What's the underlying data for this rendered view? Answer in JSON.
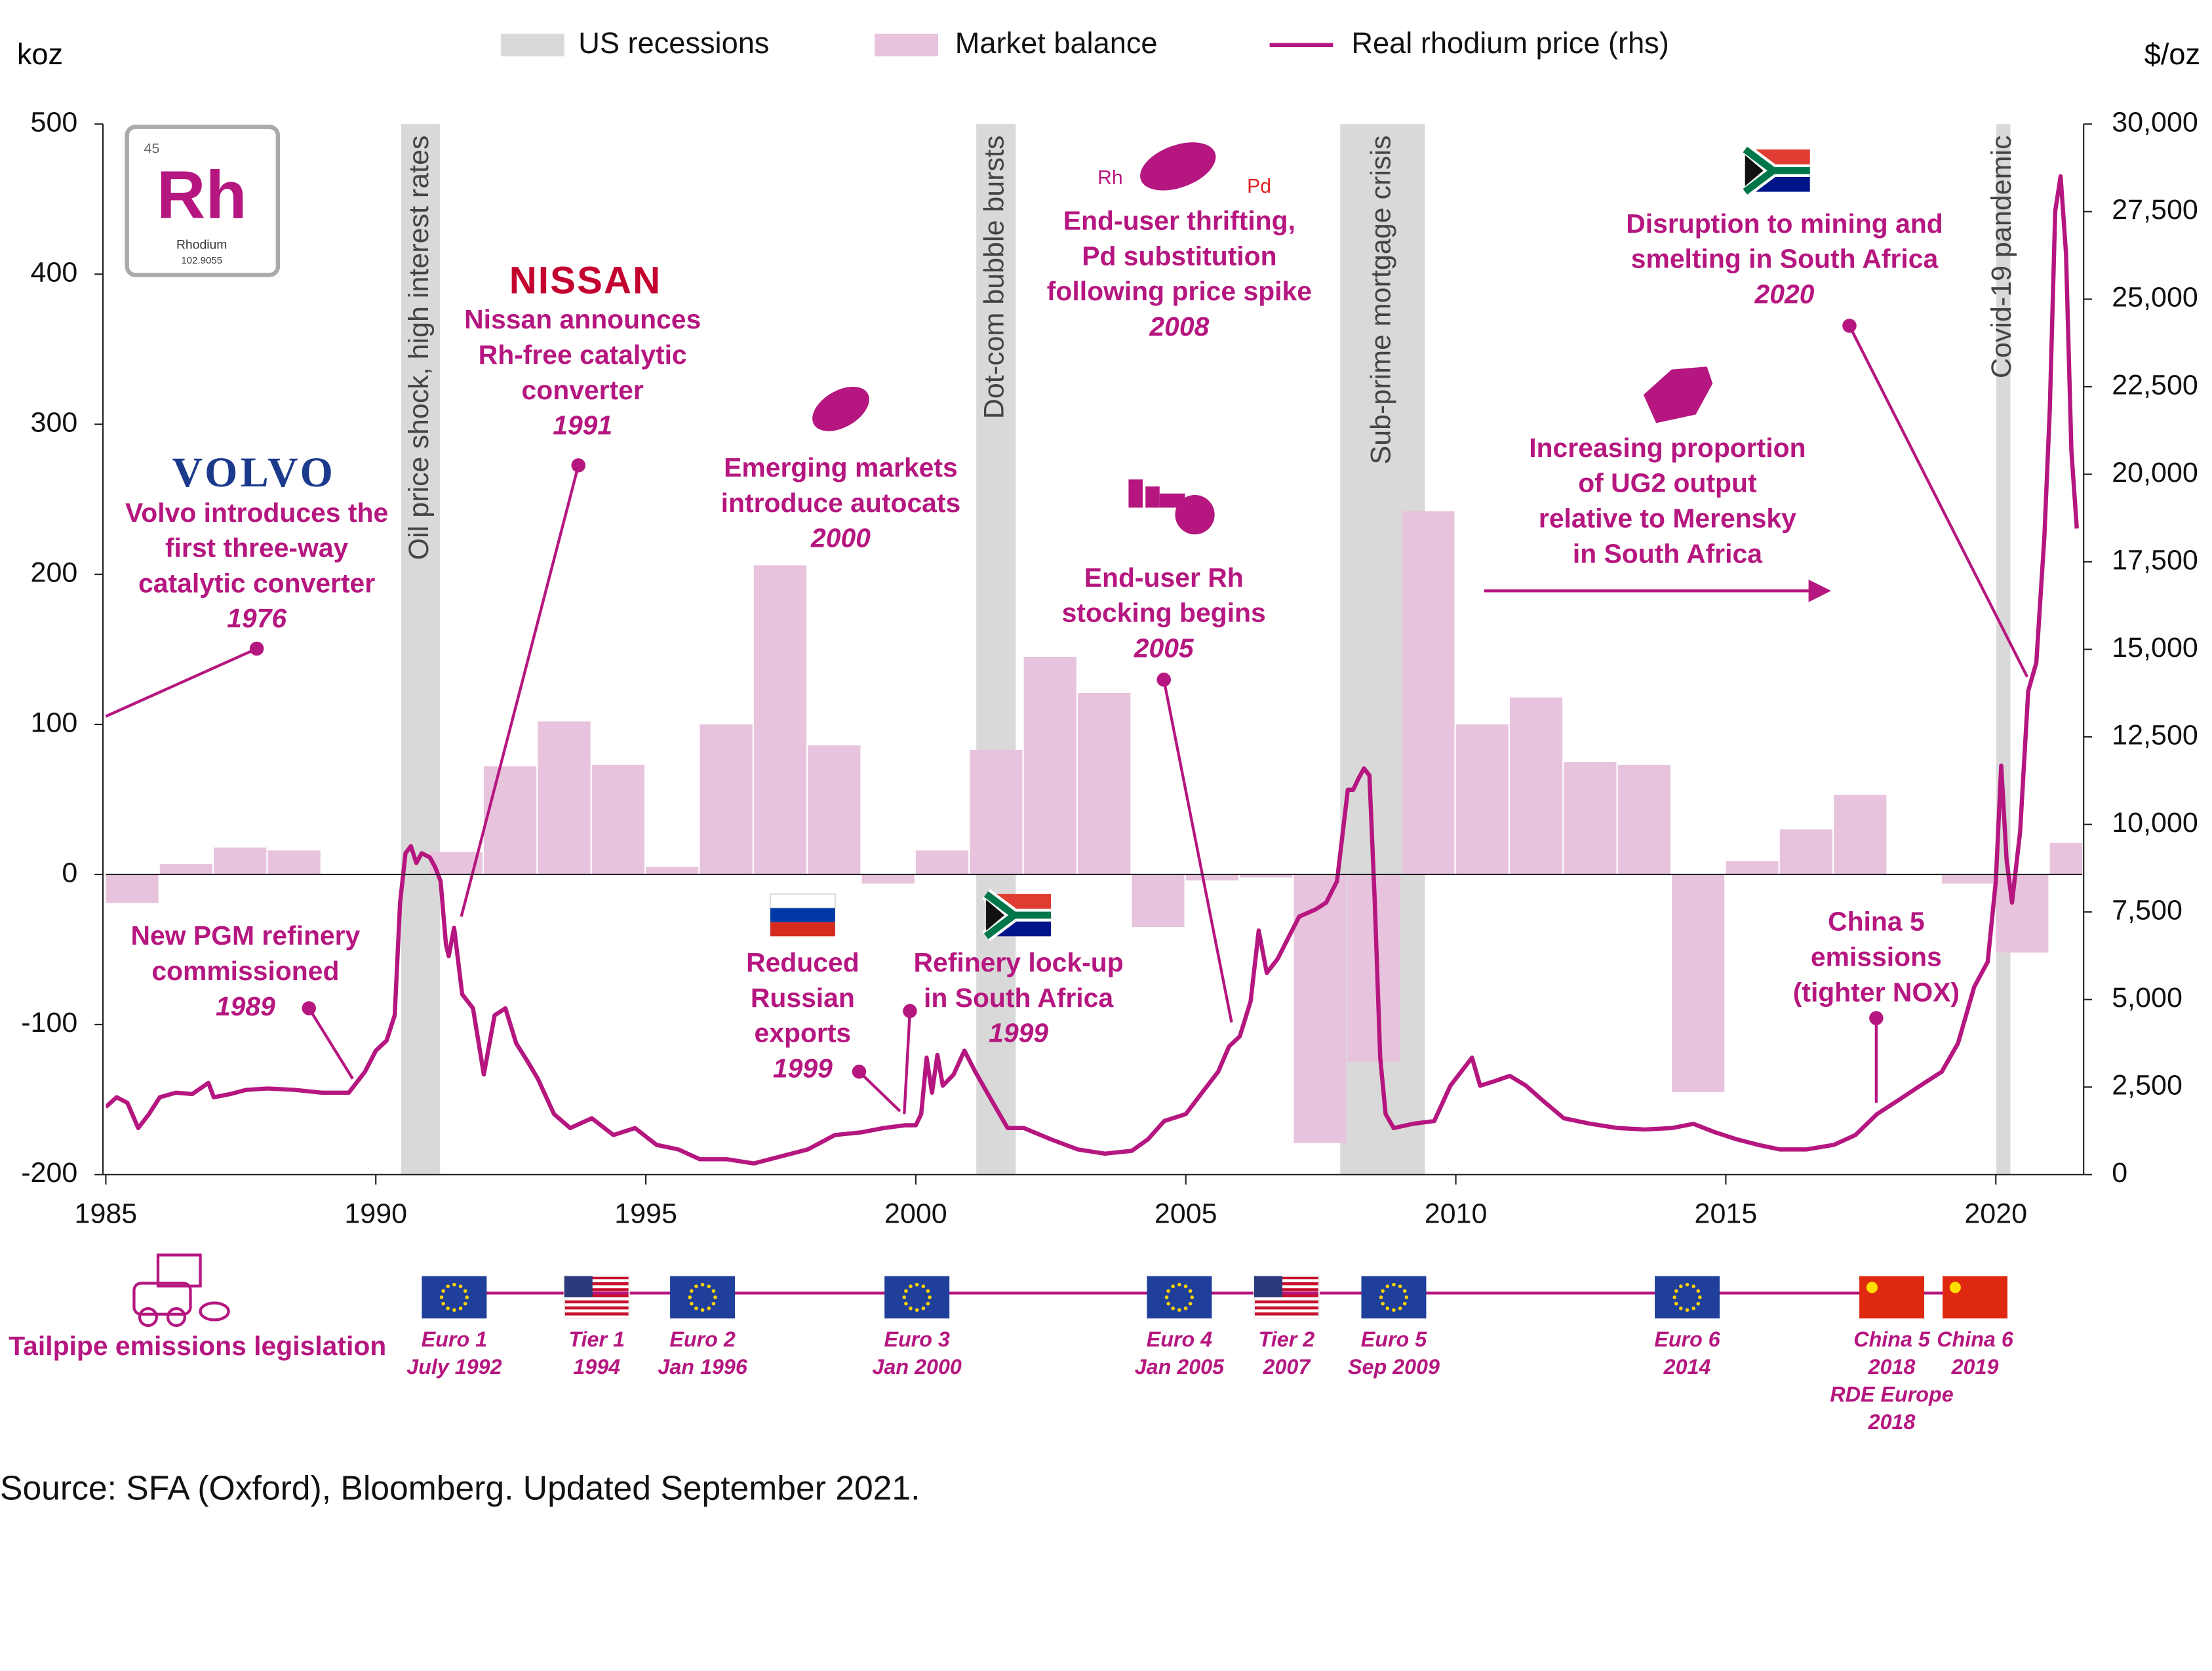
{
  "chart_data": {
    "type": "combo",
    "y_label": "koz",
    "y2_label": "$/oz",
    "xlim": [
      1985,
      2021.6
    ],
    "xticks": [
      1985,
      1990,
      1995,
      2000,
      2005,
      2010,
      2015,
      2020
    ],
    "ylim": [
      -200,
      500
    ],
    "yticks": [
      500,
      400,
      300,
      200,
      100,
      0,
      -100,
      -200
    ],
    "y2lim": [
      0,
      30000
    ],
    "y2ticks": [
      {
        "value": 30000,
        "label": "30,000"
      },
      {
        "value": 27500,
        "label": "27,500"
      },
      {
        "value": 25000,
        "label": "25,000"
      },
      {
        "value": 22500,
        "label": "22,500"
      },
      {
        "value": 20000,
        "label": "20,000"
      },
      {
        "value": 17500,
        "label": "17,500"
      },
      {
        "value": 15000,
        "label": "15,000"
      },
      {
        "value": 12500,
        "label": "12,500"
      },
      {
        "value": 10000,
        "label": "10,000"
      },
      {
        "value": 7500,
        "label": "7,500"
      },
      {
        "value": 5000,
        "label": "5,000"
      },
      {
        "value": 2500,
        "label": "2,500"
      },
      0
    ],
    "recessions": {
      "name": "US recessions",
      "color": "#d9d9d9",
      "periods": [
        {
          "start": 1990.47,
          "end": 1991.19,
          "label": "Oil price shock, high interest rates"
        },
        {
          "start": 2001.12,
          "end": 2001.85,
          "label": "Dot-com bubble bursts"
        },
        {
          "start": 2007.86,
          "end": 2009.43,
          "label": "Sub-prime mortgage crisis"
        },
        {
          "start": 2020.01,
          "end": 2020.27,
          "label": "Covid-19 pandemic"
        }
      ]
    },
    "series": [
      {
        "name": "Market balance",
        "type": "bar",
        "color": "#e8c3dd",
        "x": [
          1985,
          1986,
          1987,
          1988,
          1989,
          1990,
          1991,
          1992,
          1993,
          1994,
          1995,
          1996,
          1997,
          1998,
          1999,
          2000,
          2001,
          2002,
          2003,
          2004,
          2005,
          2006,
          2007,
          2008,
          2009,
          2010,
          2011,
          2012,
          2013,
          2014,
          2015,
          2016,
          2017,
          2018,
          2019,
          2020,
          2021
        ],
        "values": [
          -19,
          7,
          18,
          16,
          0,
          0,
          15,
          72,
          102,
          73,
          5,
          100,
          206,
          86,
          -6,
          16,
          83,
          145,
          121,
          -35,
          -4,
          -2,
          -179,
          -125,
          242,
          100,
          118,
          75,
          73,
          -145,
          9,
          30,
          53,
          0,
          -6,
          -52,
          21
        ]
      },
      {
        "name": "Real rhodium price (rhs)",
        "type": "line",
        "axis": "y2",
        "color": "#b5167f",
        "x": [
          1985,
          1985.2,
          1985.4,
          1985.6,
          1985.8,
          1986,
          1986.3,
          1986.6,
          1986.9,
          1987,
          1987.3,
          1987.6,
          1988,
          1988.5,
          1989,
          1989.5,
          1989.8,
          1990,
          1990.2,
          1990.35,
          1990.45,
          1990.55,
          1990.65,
          1990.75,
          1990.85,
          1991,
          1991.1,
          1991.2,
          1991.3,
          1991.35,
          1991.45,
          1991.6,
          1991.8,
          1992,
          1992.2,
          1992.4,
          1992.6,
          1992.8,
          1993,
          1993.3,
          1993.6,
          1994,
          1994.4,
          1994.8,
          1995.2,
          1995.6,
          1996,
          1996.5,
          1997,
          1997.5,
          1998,
          1998.5,
          1999,
          1999.4,
          1999.8,
          2000,
          2000.1,
          2000.2,
          2000.3,
          2000.4,
          2000.5,
          2000.7,
          2000.9,
          2001.1,
          2001.4,
          2001.7,
          2002,
          2002.5,
          2003,
          2003.5,
          2004,
          2004.3,
          2004.6,
          2005,
          2005.3,
          2005.6,
          2005.8,
          2006,
          2006.2,
          2006.35,
          2006.5,
          2006.7,
          2006.9,
          2007.1,
          2007.4,
          2007.6,
          2007.8,
          2008,
          2008.1,
          2008.2,
          2008.3,
          2008.4,
          2008.5,
          2008.6,
          2008.7,
          2008.85,
          2009.2,
          2009.6,
          2009.9,
          2010.1,
          2010.3,
          2010.45,
          2010.7,
          2011,
          2011.3,
          2011.6,
          2012,
          2012.5,
          2013,
          2013.5,
          2014,
          2014.4,
          2014.8,
          2015.2,
          2015.6,
          2016,
          2016.5,
          2017,
          2017.4,
          2017.8,
          2018.2,
          2018.6,
          2019,
          2019.3,
          2019.6,
          2019.85,
          2020,
          2020.1,
          2020.2,
          2020.3,
          2020.45,
          2020.6,
          2020.75,
          2020.9,
          2021,
          2021.1,
          2021.2,
          2021.3,
          2021.4,
          2021.5
        ],
        "values": [
          1930,
          2210,
          2050,
          1330,
          1730,
          2210,
          2340,
          2300,
          2620,
          2210,
          2300,
          2420,
          2460,
          2420,
          2340,
          2340,
          2940,
          3540,
          3830,
          4550,
          7770,
          9180,
          9380,
          8900,
          9180,
          9060,
          8780,
          8380,
          6560,
          6240,
          7050,
          5150,
          4750,
          2860,
          4550,
          4750,
          3750,
          3260,
          2740,
          1730,
          1330,
          1610,
          1130,
          1330,
          850,
          720,
          440,
          440,
          320,
          520,
          720,
          1130,
          1210,
          1330,
          1410,
          1410,
          1730,
          3340,
          2340,
          3420,
          2540,
          2860,
          3540,
          2940,
          2130,
          1330,
          1330,
          1010,
          720,
          600,
          680,
          1010,
          1530,
          1730,
          2340,
          2940,
          3660,
          3950,
          4950,
          6970,
          5760,
          6160,
          6770,
          7370,
          7570,
          7770,
          8380,
          10990,
          10990,
          11320,
          11600,
          11400,
          7770,
          3340,
          1730,
          1330,
          1450,
          1530,
          2540,
          2940,
          3340,
          2540,
          2660,
          2820,
          2540,
          2130,
          1610,
          1450,
          1330,
          1290,
          1330,
          1450,
          1210,
          1010,
          850,
          720,
          720,
          850,
          1130,
          1730,
          2130,
          2540,
          2940,
          3750,
          5360,
          6080,
          8380,
          11680,
          8980,
          7770,
          9790,
          13810,
          14620,
          18240,
          21870,
          27510,
          28510,
          26300,
          20660,
          18450
        ]
      }
    ],
    "element": {
      "number": "45",
      "symbol": "Rh",
      "name": "Rhodium",
      "mass": "102.9055"
    },
    "icon_labels": [
      "Rh",
      "Pd"
    ],
    "logos": [
      "VOLVO",
      "NISSAN"
    ],
    "annotations": [
      {
        "lines": [
          "Volvo introduces the",
          "first three-way",
          "catalytic converter"
        ],
        "year": "1976"
      },
      {
        "lines": [
          "Nissan announces",
          "Rh-free catalytic",
          "converter"
        ],
        "year": "1991"
      },
      {
        "lines": [
          "Emerging markets",
          "introduce autocats"
        ],
        "year": "2000"
      },
      {
        "lines": [
          "End-user thrifting,",
          "Pd substitution",
          "following price spike"
        ],
        "year": "2008"
      },
      {
        "lines": [
          "End-user Rh",
          "stocking begins"
        ],
        "year": "2005"
      },
      {
        "lines": [
          "Disruption to mining and",
          "smelting in South Africa"
        ],
        "year": "2020"
      },
      {
        "lines": [
          "Increasing proportion",
          "of UG2 output",
          "relative to Merensky",
          "in South Africa"
        ]
      },
      {
        "lines": [
          "New PGM refinery",
          "commissioned"
        ],
        "year": "1989"
      },
      {
        "lines": [
          "Reduced",
          "Russian",
          "exports"
        ],
        "year": "1999"
      },
      {
        "lines": [
          "Refinery lock-up",
          "in South Africa"
        ],
        "year": "1999"
      },
      {
        "lines": [
          "China 5",
          "emissions",
          "(tighter NOX)"
        ]
      }
    ]
  },
  "legislation": {
    "title": "Tailpipe emissions legislation",
    "items": [
      [
        "Euro 1",
        "July 1992"
      ],
      [
        "Tier 1",
        "1994"
      ],
      [
        "Euro 2",
        "Jan 1996"
      ],
      [
        "Euro 3",
        "Jan 2000"
      ],
      [
        "Euro 4",
        "Jan 2005"
      ],
      [
        "Tier 2",
        "2007"
      ],
      [
        "Euro 5",
        "Sep 2009"
      ],
      [
        "Euro 6",
        "2014"
      ],
      [
        "China 5",
        "2018",
        "RDE Europe",
        "2018"
      ],
      [
        "China 6",
        "2019"
      ]
    ]
  },
  "source": "Source: SFA (Oxford), Bloomberg. Updated September 2021."
}
